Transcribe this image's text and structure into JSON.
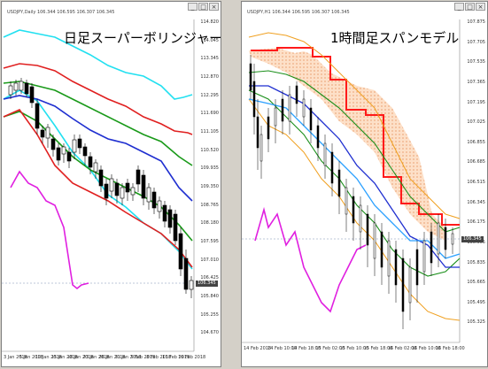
{
  "left_window": {
    "symbol_info": "USDJPY,Daily  106.344 106.595 106.307 106.345",
    "overlay_title": "日足スーパーボリンジャー",
    "current_price": "106.345",
    "y_ticks": [
      "114.820",
      "114.045",
      "113.345",
      "112.870",
      "112.295",
      "111.690",
      "111.105",
      "110.520",
      "109.935",
      "109.350",
      "108.765",
      "108.180",
      "107.595",
      "107.010",
      "106.425",
      "105.840",
      "105.255",
      "104.670"
    ],
    "x_ticks": [
      "3 Jan 2018",
      "5 Jan 2018",
      "10 Jan 2018",
      "15 Jan 2018",
      "18 Jan 2018",
      "23 Jan 2018",
      "26 Jan 2018",
      "31 Jan 2018",
      "5 Feb 2018",
      "8 Feb 2018",
      "13 Feb 2018",
      "16 Feb 2018"
    ]
  },
  "right_window": {
    "symbol_info": "USDJPY,H1  106.344 106.595 106.307 106.345",
    "overlay_title": "1時間足スパンモデル",
    "current_price": "106.345",
    "y_ticks": [
      "107.875",
      "107.705",
      "107.535",
      "107.365",
      "107.195",
      "107.025",
      "106.855",
      "106.685",
      "106.515",
      "106.345",
      "106.175",
      "106.005",
      "105.835",
      "105.665",
      "105.495",
      "105.325"
    ],
    "x_ticks": [
      "14 Feb 2018",
      "14 Feb 10:00",
      "14 Feb 18:00",
      "15 Feb 02:00",
      "15 Feb 10:00",
      "15 Feb 18:00",
      "16 Feb 02:00",
      "16 Feb 10:00",
      "16 Feb 18:00"
    ]
  },
  "icons": {
    "minimize": "minimize-icon",
    "maximize": "maximize-icon",
    "close": "close-icon"
  }
}
